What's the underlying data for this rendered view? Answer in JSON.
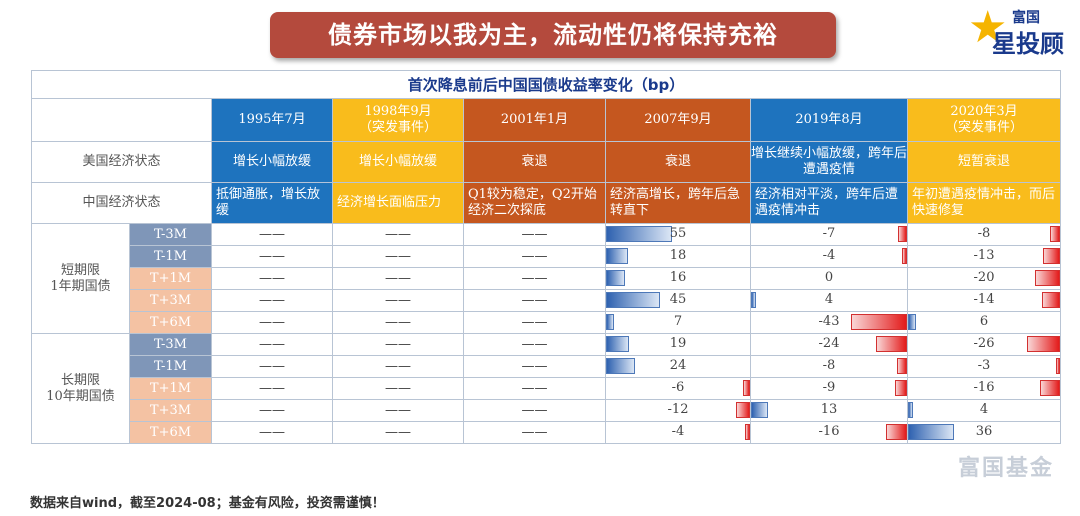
{
  "banner": "债券市场以我为主，流动性仍将保持充裕",
  "logo": {
    "line1": "富国",
    "line2": "星投顾"
  },
  "table": {
    "title": "首次降息前后中国国债收益率变化（bp）",
    "columns": [
      {
        "date": "1995年7月",
        "note": "",
        "color": "blue"
      },
      {
        "date": "1998年9月",
        "note": "（突发事件）",
        "color": "yellow"
      },
      {
        "date": "2001年1月",
        "note": "",
        "color": "brown"
      },
      {
        "date": "2007年9月",
        "note": "",
        "color": "brown"
      },
      {
        "date": "2019年8月",
        "note": "",
        "color": "blue"
      },
      {
        "date": "2020年3月",
        "note": "（突发事件）",
        "color": "yellow"
      }
    ],
    "us_label": "美国经济状态",
    "us_states": [
      "增长小幅放缓",
      "增长小幅放缓",
      "衰退",
      "衰退",
      "增长继续小幅放缓，跨年后遭遇疫情",
      "短暂衰退"
    ],
    "cn_label": "中国经济状态",
    "cn_states": [
      "抵御通胀，增长放缓",
      "经济增长面临压力",
      "Q1较为稳定，Q2开始经济二次探底",
      "经济高增长，跨年后急转直下",
      "经济相对平淡，跨年后遭遇疫情冲击",
      "年初遭遇疫情冲击，而后快速修复"
    ],
    "dash": "——",
    "groups": [
      {
        "label": "短期限\n1年期国债",
        "rows": [
          {
            "period": "T-3M",
            "shade": "dark",
            "v2007": 55,
            "v2019": -7,
            "v2020": -8
          },
          {
            "period": "T-1M",
            "shade": "dark",
            "v2007": 18,
            "v2019": -4,
            "v2020": -13
          },
          {
            "period": "T+1M",
            "shade": "light",
            "v2007": 16,
            "v2019": 0,
            "v2020": -20
          },
          {
            "period": "T+3M",
            "shade": "light",
            "v2007": 45,
            "v2019": 4,
            "v2020": -14
          },
          {
            "period": "T+6M",
            "shade": "light",
            "v2007": 7,
            "v2019": -43,
            "v2020": 6
          }
        ]
      },
      {
        "label": "长期限\n10年期国债",
        "rows": [
          {
            "period": "T-3M",
            "shade": "dark",
            "v2007": 19,
            "v2019": -24,
            "v2020": -26
          },
          {
            "period": "T-1M",
            "shade": "dark",
            "v2007": 24,
            "v2019": -8,
            "v2020": -3
          },
          {
            "period": "T+1M",
            "shade": "light",
            "v2007": -6,
            "v2019": -9,
            "v2020": -16
          },
          {
            "period": "T+3M",
            "shade": "light",
            "v2007": -12,
            "v2019": 13,
            "v2020": 4
          },
          {
            "period": "T+6M",
            "shade": "light",
            "v2007": -4,
            "v2019": -16,
            "v2020": 36
          }
        ]
      }
    ]
  },
  "footer": "数据来自wind，截至2024-08；基金有风险，投资需谨慎！",
  "watermark": "富国基金"
}
